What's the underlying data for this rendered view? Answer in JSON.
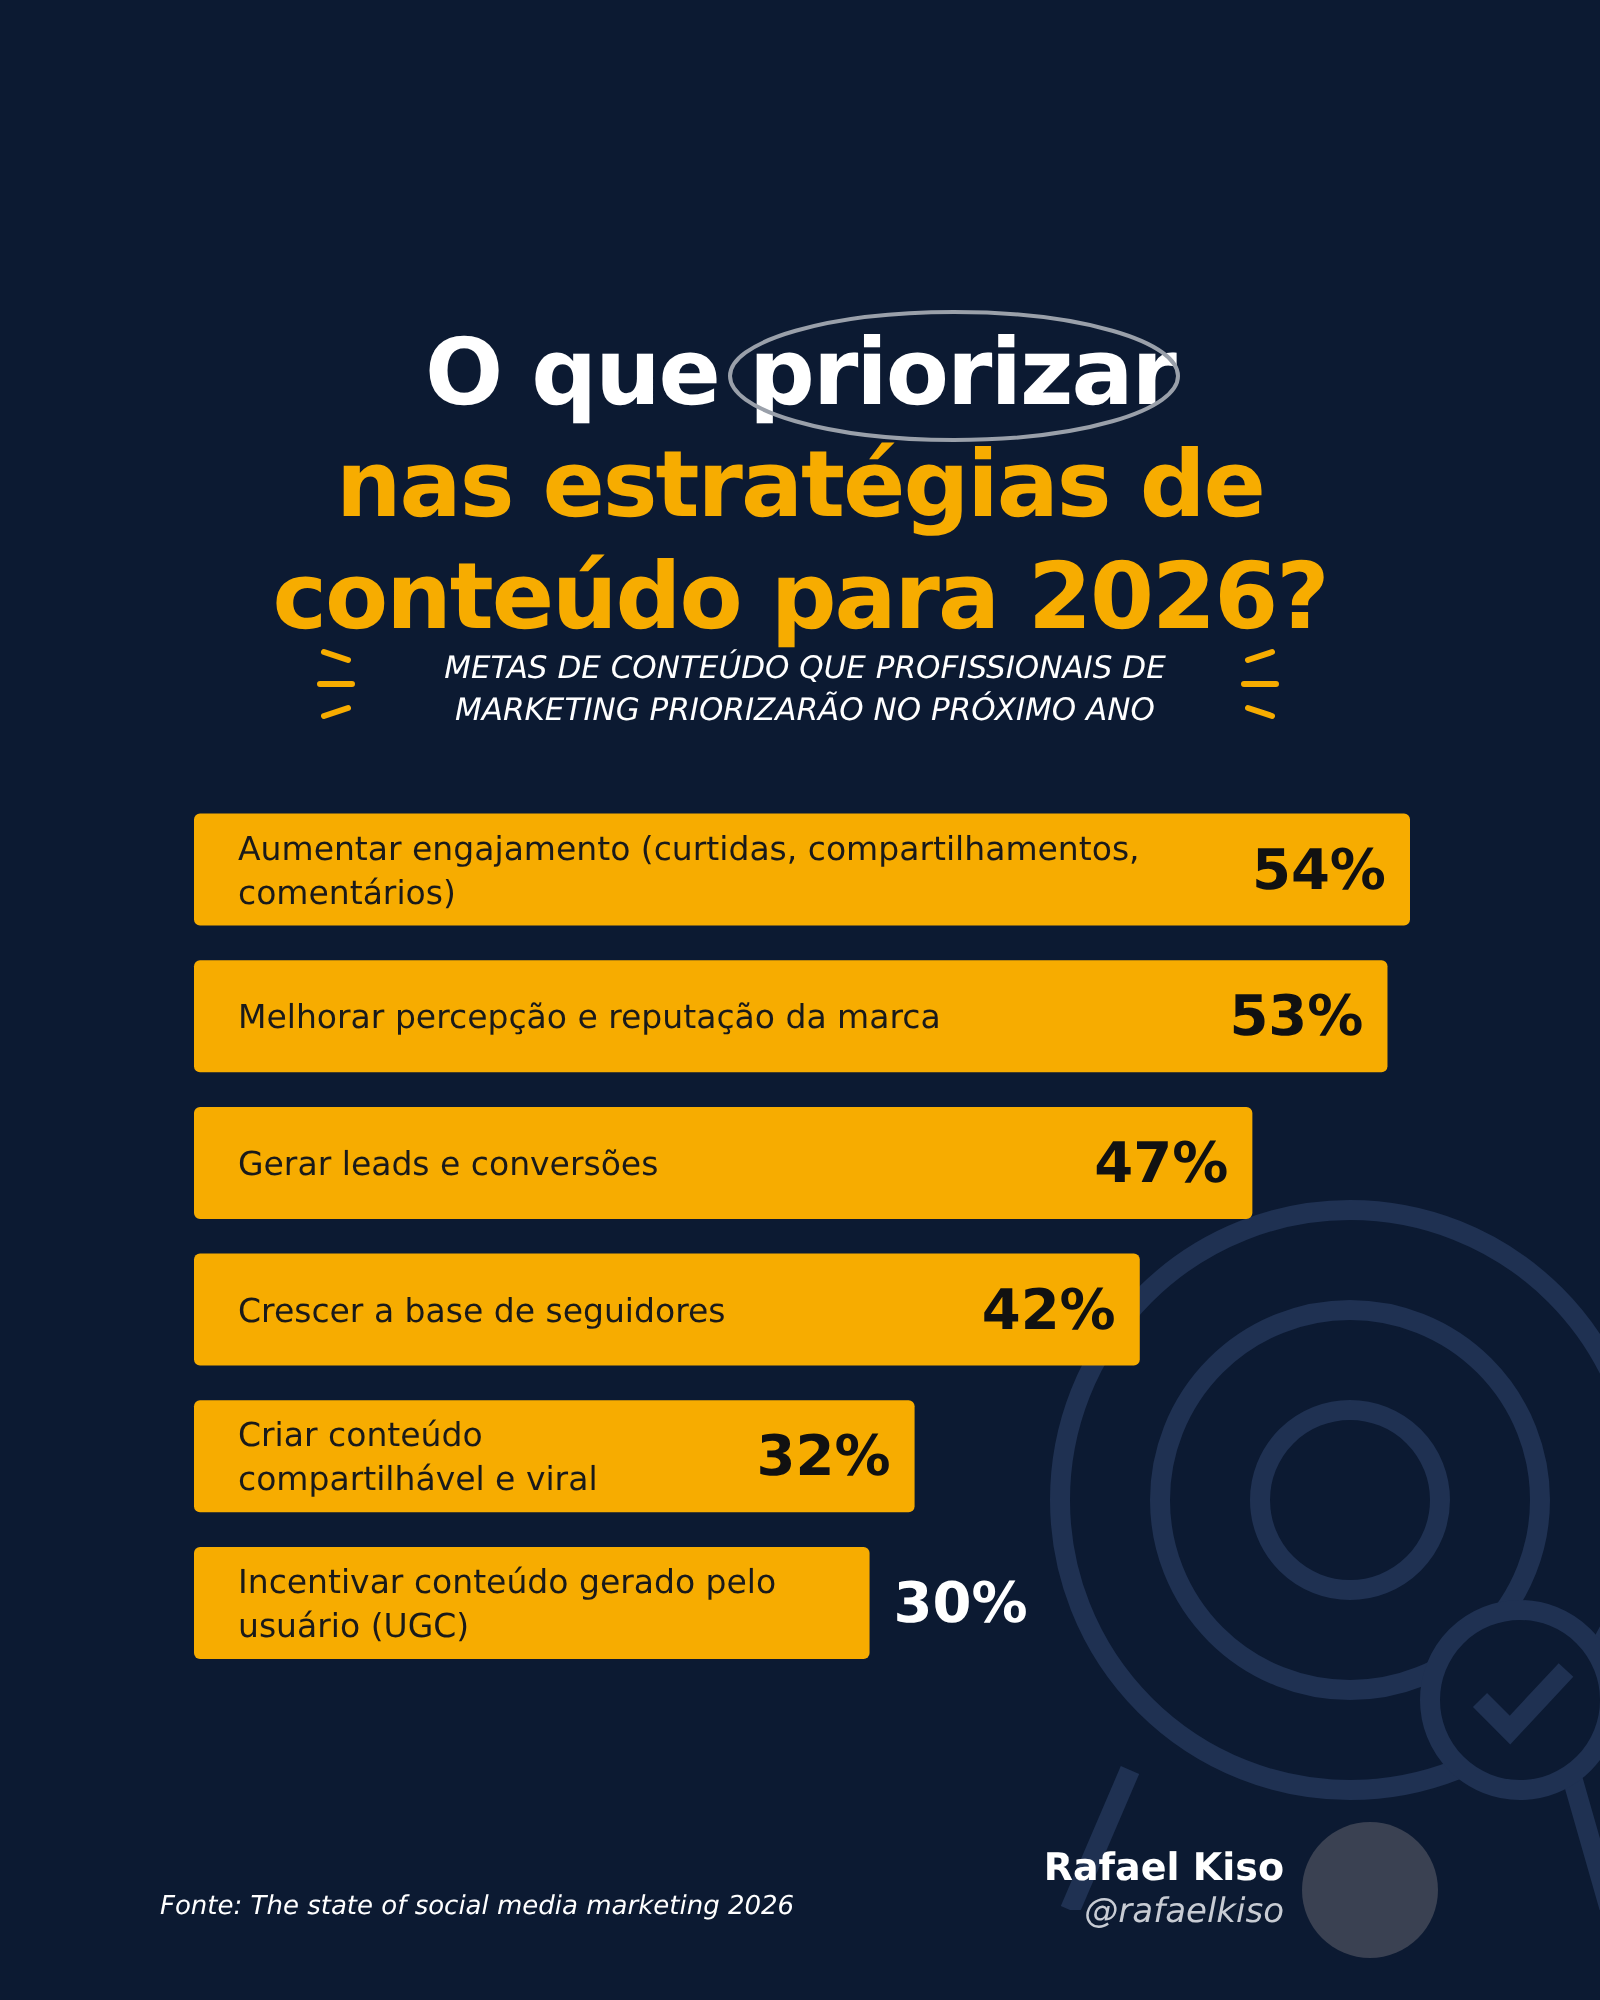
{
  "chart_data": {
    "type": "bar",
    "orientation": "horizontal",
    "title": "O que priorizar nas estratégias de conteúdo para 2026?",
    "subtitle": "METAS DE CONTEÚDO QUE PROFISSIONAIS DE MARKETING PRIORIZARÃO NO PRÓXIMO ANO",
    "categories": [
      "Aumentar engajamento (curtidas, compartilhamentos, comentários)",
      "Melhorar percepção e reputação da marca",
      "Gerar leads e conversões",
      "Crescer a base de seguidores",
      "Criar conteúdo compartilhável e viral",
      "Incentivar conteúdo gerado pelo usuário (UGC)"
    ],
    "values": [
      54,
      53,
      47,
      42,
      32,
      30
    ],
    "value_labels": [
      "54%",
      "53%",
      "47%",
      "42%",
      "32%",
      "30%"
    ],
    "color": "#f7ac00",
    "tick_labels": false,
    "annotations": [
      "Fonte: The state of social media marketing 2026",
      "Rafael Kiso",
      "@rafaelkiso"
    ]
  }
}
